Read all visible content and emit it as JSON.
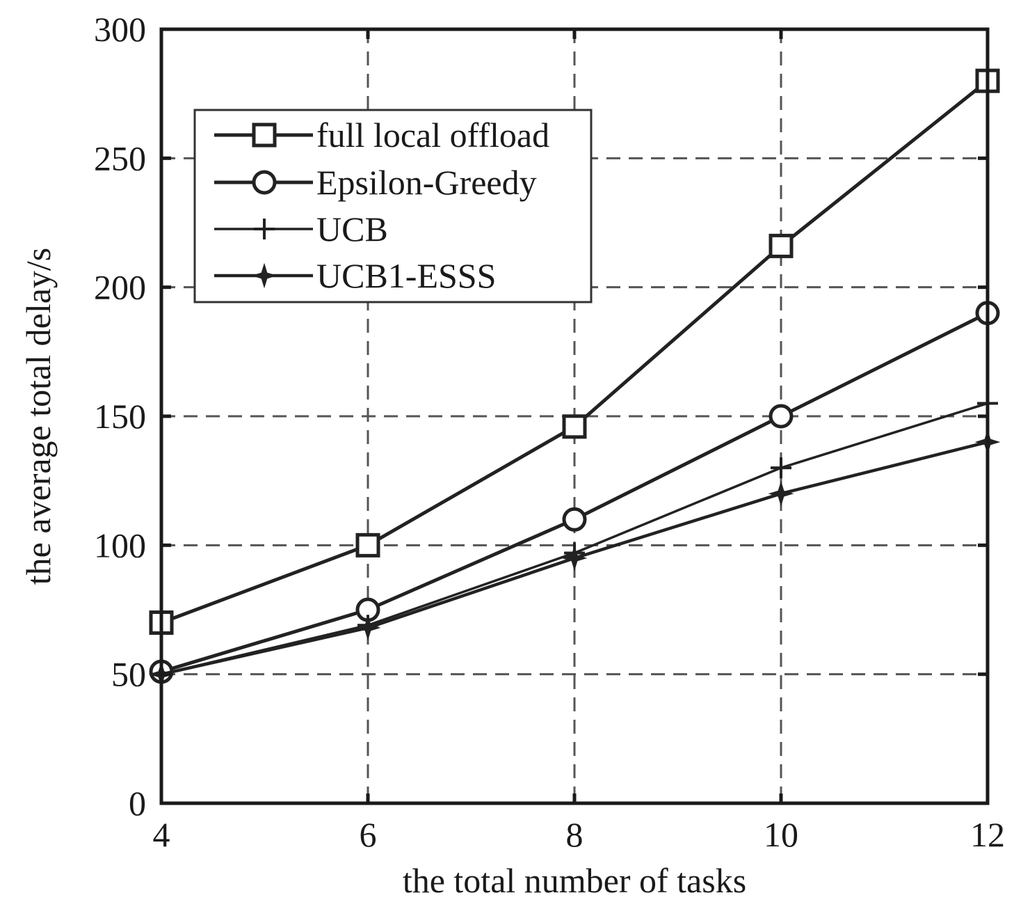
{
  "chart_data": {
    "type": "line",
    "title": "",
    "xlabel": "the total number of tasks",
    "ylabel": "the average total delay/s",
    "x": [
      4,
      6,
      8,
      10,
      12
    ],
    "xlim": [
      4,
      12
    ],
    "ylim": [
      0,
      300
    ],
    "x_ticks": [
      4,
      6,
      8,
      10,
      12
    ],
    "y_ticks": [
      0,
      50,
      100,
      150,
      200,
      250,
      300
    ],
    "grid": true,
    "legend_position": "upper-left",
    "series": [
      {
        "name": "full local offload",
        "marker": "square",
        "values": [
          70,
          100,
          146,
          216,
          280
        ]
      },
      {
        "name": "Epsilon-Greedy",
        "marker": "circle",
        "values": [
          51,
          75,
          110,
          150,
          190
        ]
      },
      {
        "name": "UCB",
        "marker": "plus",
        "values": [
          50,
          69,
          97,
          130,
          155
        ]
      },
      {
        "name": "UCB1-ESSS",
        "marker": "star",
        "values": [
          50,
          68,
          95,
          120,
          140
        ]
      }
    ]
  }
}
